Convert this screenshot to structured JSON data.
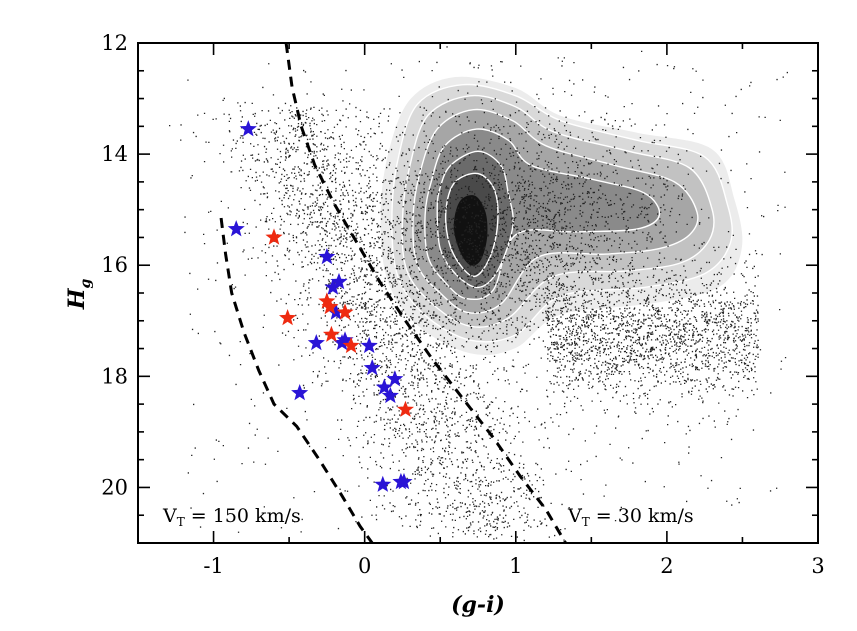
{
  "chart_data": {
    "type": "scatter",
    "title": "",
    "xlabel": "(g-i)",
    "ylabel_main": "H",
    "ylabel_sub": "g",
    "xlim": [
      -1.5,
      3.0
    ],
    "ylim": [
      21.0,
      12.0
    ],
    "y_inverted": true,
    "xticks": [
      -1,
      0,
      1,
      2,
      3
    ],
    "xtick_labels": [
      "-1",
      "0",
      "1",
      "2",
      "3"
    ],
    "yticks": [
      12,
      14,
      16,
      18,
      20
    ],
    "ytick_labels": [
      "12",
      "14",
      "16",
      "18",
      "20"
    ],
    "grid": false,
    "colors": {
      "blue_star": "#2a14d6",
      "red_star": "#ee2a10",
      "points": "#222222",
      "contour_levels": [
        "#ececec",
        "#d9d9d9",
        "#c2c2c2",
        "#a6a6a6",
        "#8a8a8a",
        "#6b6b6b",
        "#4a4a4a",
        "#111111"
      ]
    },
    "annotations": {
      "left_main": "V",
      "left_sub": "T",
      "left_rest": " = 150 km/s",
      "right_main": "V",
      "right_sub": "T",
      "right_rest": " = 30 km/s"
    },
    "reference_curves": [
      {
        "name": "VT = 150 km/s",
        "style": "dashed",
        "points": [
          [
            -0.95,
            15.15
          ],
          [
            -0.92,
            15.8
          ],
          [
            -0.88,
            16.5
          ],
          [
            -0.8,
            17.2
          ],
          [
            -0.7,
            17.9
          ],
          [
            -0.6,
            18.5
          ],
          [
            -0.45,
            18.9
          ],
          [
            -0.3,
            19.5
          ],
          [
            -0.15,
            20.15
          ],
          [
            -0.03,
            20.7
          ],
          [
            0.05,
            21.0
          ]
        ]
      },
      {
        "name": "VT = 30 km/s",
        "style": "dashed",
        "points": [
          [
            -0.52,
            12.0
          ],
          [
            -0.48,
            12.8
          ],
          [
            -0.42,
            13.5
          ],
          [
            -0.33,
            14.2
          ],
          [
            -0.2,
            14.9
          ],
          [
            -0.05,
            15.6
          ],
          [
            0.1,
            16.3
          ],
          [
            0.27,
            17.0
          ],
          [
            0.45,
            17.7
          ],
          [
            0.65,
            18.4
          ],
          [
            0.85,
            19.1
          ],
          [
            1.03,
            19.8
          ],
          [
            1.2,
            20.4
          ],
          [
            1.33,
            21.0
          ]
        ]
      }
    ],
    "series": [
      {
        "name": "blue stars",
        "marker": "star",
        "x": [
          -0.77,
          -0.85,
          -0.25,
          -0.21,
          -0.17,
          -0.19,
          -0.13,
          -0.32,
          -0.15,
          0.03,
          0.05,
          -0.43,
          0.13,
          0.17,
          0.2,
          0.24,
          0.12,
          0.26
        ],
        "y": [
          13.55,
          15.35,
          15.85,
          16.4,
          16.3,
          16.85,
          17.35,
          17.4,
          17.4,
          17.45,
          17.85,
          18.3,
          18.2,
          18.35,
          18.05,
          19.9,
          19.95,
          19.9
        ]
      },
      {
        "name": "red stars",
        "marker": "star",
        "x": [
          -0.6,
          -0.25,
          -0.23,
          -0.51,
          -0.13,
          -0.22,
          -0.09,
          0.27
        ],
        "y": [
          15.5,
          16.65,
          16.75,
          16.95,
          16.85,
          17.25,
          17.45,
          18.6
        ]
      }
    ]
  }
}
